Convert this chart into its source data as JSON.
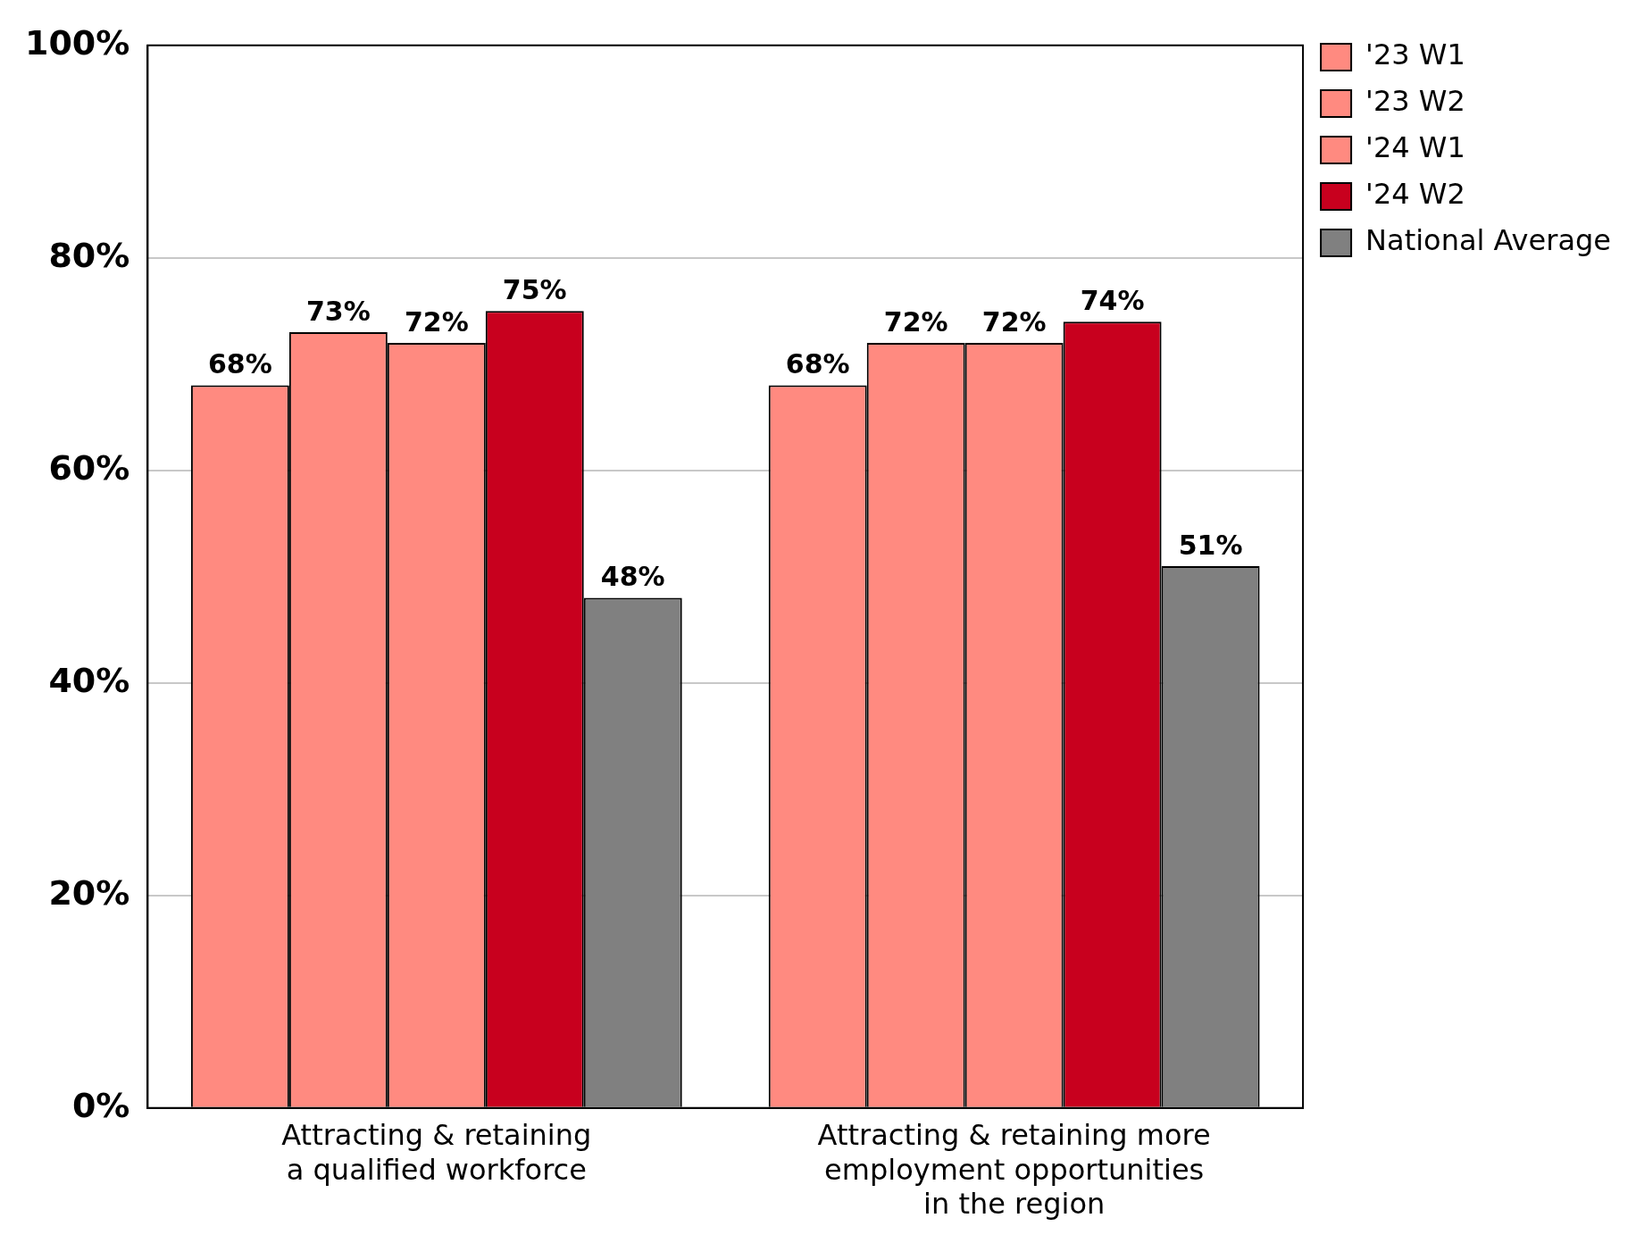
{
  "chart_data": {
    "type": "bar",
    "categories": [
      "Attracting & retaining\na qualified workforce",
      "Attracting & retaining more\nemployment opportunities\nin the region"
    ],
    "series": [
      {
        "name": "'23 W1",
        "color": "#ff8a80",
        "values": [
          68,
          68
        ],
        "value_labels": [
          "68%",
          "68%"
        ]
      },
      {
        "name": "'23 W2",
        "color": "#ff8a80",
        "values": [
          73,
          72
        ],
        "value_labels": [
          "73%",
          "72%"
        ]
      },
      {
        "name": "'24 W1",
        "color": "#ff8a80",
        "values": [
          72,
          72
        ],
        "value_labels": [
          "72%",
          "72%"
        ]
      },
      {
        "name": "'24 W2",
        "color": "#c8001e",
        "values": [
          75,
          74
        ],
        "value_labels": [
          "75%",
          "74%"
        ]
      },
      {
        "name": "National Average",
        "color": "#808080",
        "values": [
          48,
          51
        ],
        "value_labels": [
          "48%",
          "51%"
        ]
      }
    ],
    "ylim": [
      0,
      100
    ],
    "yticks": [
      {
        "value": 0,
        "label": "0%"
      },
      {
        "value": 20,
        "label": "20%"
      },
      {
        "value": 40,
        "label": "40%"
      },
      {
        "value": 60,
        "label": "60%"
      },
      {
        "value": 80,
        "label": "80%"
      },
      {
        "value": 100,
        "label": "100%"
      }
    ],
    "grid": "y",
    "legend": "right"
  }
}
